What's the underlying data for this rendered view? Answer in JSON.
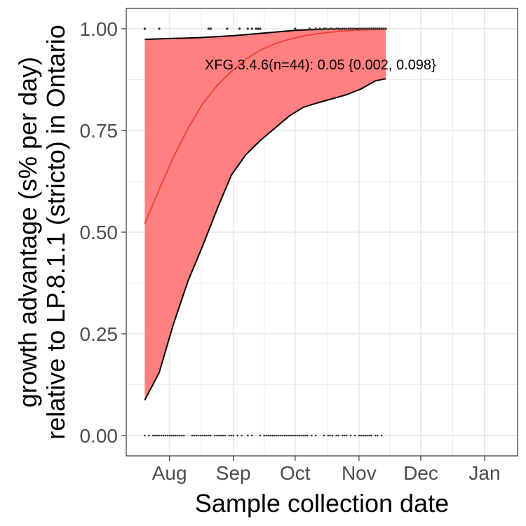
{
  "chart_data": {
    "type": "line",
    "xlabel": "Sample collection date",
    "ylabel_lines": [
      "growth advantage (s% per day)",
      "relative to LP.8.1.1 (stricto) in Ontario"
    ],
    "annotation": "XFG.3.4.6(n=44): 0.05 {0.002, 0.098}",
    "x_ticks": [
      "2025-08-01",
      "2025-09-01",
      "2025-10-01",
      "2025-11-01",
      "2025-12-01",
      "2026-01-01"
    ],
    "x_tick_labels": [
      "Aug",
      "Sep",
      "Oct",
      "Nov",
      "Dec",
      "Jan"
    ],
    "x_range": [
      "2025-07-11",
      "2026-01-17"
    ],
    "y_ticks": [
      0,
      0.25,
      0.5,
      0.75,
      1
    ],
    "y_tick_labels": [
      "0.00",
      "0.25",
      "0.50",
      "0.75",
      "1.00"
    ],
    "ylim": [
      -0.05,
      1.05
    ],
    "grid": true,
    "colors": {
      "ribbon": "#ff8080",
      "fit_line": "#f0443a",
      "bound_line": "#000000",
      "points": "#333333",
      "grid": "#ebebeb",
      "panel_border": "#333333"
    },
    "series": [
      {
        "name": "fitted proportion",
        "x": [
          "2025-07-20",
          "2025-07-27",
          "2025-08-03",
          "2025-08-10",
          "2025-08-17",
          "2025-08-24",
          "2025-08-31",
          "2025-09-07",
          "2025-09-14",
          "2025-09-21",
          "2025-09-28",
          "2025-10-05",
          "2025-10-12",
          "2025-10-19",
          "2025-10-26",
          "2025-11-02",
          "2025-11-09",
          "2025-11-14"
        ],
        "y": [
          0.52,
          0.605,
          0.685,
          0.755,
          0.815,
          0.86,
          0.895,
          0.925,
          0.947,
          0.963,
          0.974,
          0.982,
          0.988,
          0.992,
          0.995,
          0.997,
          0.998,
          0.999
        ]
      },
      {
        "name": "upper bound",
        "x": [
          "2025-07-20",
          "2025-08-01",
          "2025-08-15",
          "2025-09-01",
          "2025-09-15",
          "2025-10-01",
          "2025-10-15",
          "2025-11-01",
          "2025-11-14"
        ],
        "y": [
          0.974,
          0.976,
          0.978,
          0.983,
          0.989,
          0.996,
          0.999,
          1.0,
          1.0
        ]
      },
      {
        "name": "lower bound",
        "x": [
          "2025-07-20",
          "2025-07-27",
          "2025-08-03",
          "2025-08-10",
          "2025-08-17",
          "2025-08-24",
          "2025-08-31",
          "2025-09-07",
          "2025-09-14",
          "2025-09-21",
          "2025-09-28",
          "2025-10-05",
          "2025-10-12",
          "2025-10-19",
          "2025-10-26",
          "2025-11-02",
          "2025-11-09",
          "2025-11-14"
        ],
        "y": [
          0.087,
          0.155,
          0.275,
          0.38,
          0.465,
          0.555,
          0.64,
          0.69,
          0.725,
          0.755,
          0.785,
          0.807,
          0.818,
          0.828,
          0.838,
          0.852,
          0.872,
          0.877
        ]
      }
    ],
    "points_top": {
      "y": 1,
      "x": [
        "2025-07-20",
        "2025-07-27",
        "2025-08-20",
        "2025-08-21",
        "2025-08-29",
        "2025-09-04",
        "2025-09-08",
        "2025-09-10",
        "2025-09-12",
        "2025-09-13",
        "2025-09-14",
        "2025-10-01",
        "2025-10-08",
        "2025-10-11",
        "2025-10-13",
        "2025-10-15",
        "2025-10-16",
        "2025-10-18",
        "2025-10-19",
        "2025-10-21",
        "2025-10-22",
        "2025-10-24",
        "2025-10-25",
        "2025-10-27",
        "2025-10-28",
        "2025-10-29",
        "2025-10-30",
        "2025-11-01",
        "2025-11-02",
        "2025-11-03",
        "2025-11-04",
        "2025-11-05",
        "2025-11-06",
        "2025-11-07",
        "2025-11-08",
        "2025-11-09",
        "2025-11-10",
        "2025-11-11",
        "2025-11-12",
        "2025-11-13",
        "2025-11-14"
      ]
    },
    "points_bottom": {
      "y": 0,
      "x": [
        "2025-07-20",
        "2025-07-22",
        "2025-07-24",
        "2025-07-25",
        "2025-07-26",
        "2025-07-27",
        "2025-07-28",
        "2025-07-29",
        "2025-07-30",
        "2025-07-31",
        "2025-08-01",
        "2025-08-02",
        "2025-08-03",
        "2025-08-04",
        "2025-08-05",
        "2025-08-06",
        "2025-08-07",
        "2025-08-08",
        "2025-08-12",
        "2025-08-13",
        "2025-08-14",
        "2025-08-15",
        "2025-08-16",
        "2025-08-17",
        "2025-08-18",
        "2025-08-19",
        "2025-08-20",
        "2025-08-21",
        "2025-08-23",
        "2025-08-24",
        "2025-08-25",
        "2025-08-26",
        "2025-08-27",
        "2025-08-28",
        "2025-08-30",
        "2025-08-31",
        "2025-09-01",
        "2025-09-03",
        "2025-09-05",
        "2025-09-08",
        "2025-09-10",
        "2025-09-14",
        "2025-09-16",
        "2025-09-17",
        "2025-09-18",
        "2025-09-19",
        "2025-09-20",
        "2025-09-21",
        "2025-09-22",
        "2025-09-23",
        "2025-09-24",
        "2025-09-25",
        "2025-09-26",
        "2025-09-27",
        "2025-09-28",
        "2025-09-29",
        "2025-09-30",
        "2025-10-01",
        "2025-10-02",
        "2025-10-03",
        "2025-10-04",
        "2025-10-05",
        "2025-10-06",
        "2025-10-07",
        "2025-10-09",
        "2025-10-11",
        "2025-10-15",
        "2025-10-17",
        "2025-10-18",
        "2025-10-19",
        "2025-10-21",
        "2025-10-22",
        "2025-10-24",
        "2025-10-25",
        "2025-10-26",
        "2025-10-28",
        "2025-10-30",
        "2025-11-01",
        "2025-11-02",
        "2025-11-03",
        "2025-11-04",
        "2025-11-05",
        "2025-11-06",
        "2025-11-07",
        "2025-11-09",
        "2025-11-10",
        "2025-11-12"
      ]
    }
  }
}
